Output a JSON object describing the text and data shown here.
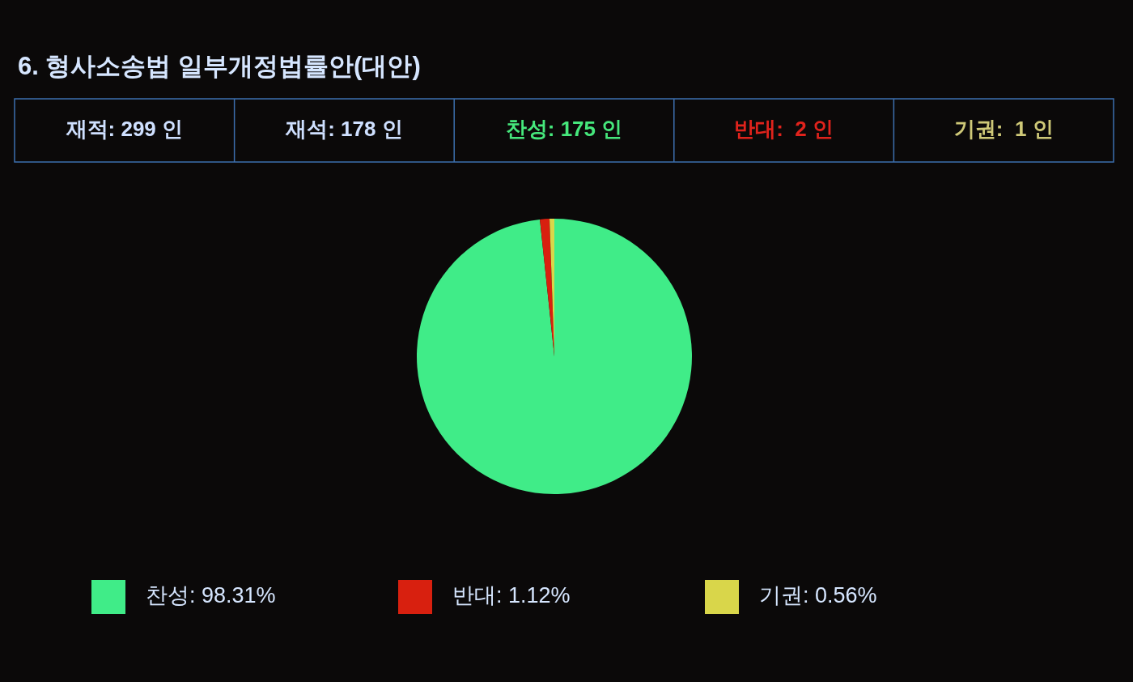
{
  "chart_data": [
    {
      "type": "other",
      "title": "6. 형사소송법 일부개정법률안(대안)",
      "annotations": [
        "재적: 299 인",
        "재석: 178 인",
        "찬성: 175 인",
        "반대:  2 인",
        "기권:  1 인"
      ],
      "colors": [
        "#cfe0ff",
        "#cfe0ff",
        "#46e87c",
        "#e0231c",
        "#cfc978"
      ]
    },
    {
      "type": "pie",
      "categories": [
        "찬성",
        "반대",
        "기권"
      ],
      "values": [
        98.31,
        1.12,
        0.56
      ],
      "value_labels": [
        "98.31%",
        "1.12%",
        "0.56%"
      ],
      "colors": [
        "#40ec88",
        "#d8200f",
        "#d9d64a"
      ],
      "legend": "bottom"
    }
  ]
}
